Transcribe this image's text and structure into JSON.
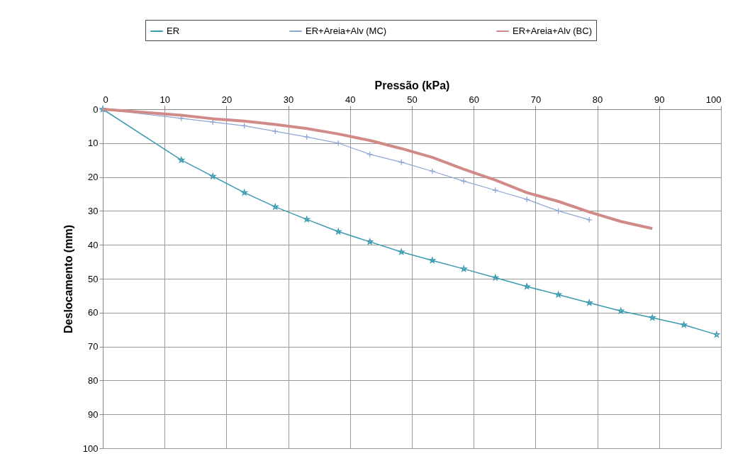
{
  "chart_data": {
    "type": "line",
    "xlabel": "Pressão (kPa)",
    "ylabel": "Deslocamento (mm)",
    "xlim": [
      0,
      100
    ],
    "xticks": [
      0,
      10,
      20,
      30,
      40,
      50,
      60,
      70,
      80,
      90,
      100
    ],
    "ylim": [
      100,
      0
    ],
    "yticks": [
      0,
      10,
      20,
      30,
      40,
      50,
      60,
      70,
      80,
      90,
      100
    ],
    "grid": true,
    "legend": "top",
    "series": [
      {
        "name": "ER",
        "color": "#3a9ab0",
        "marker": "star",
        "x": [
          0,
          12.7,
          17.8,
          22.9,
          27.9,
          33.0,
          38.1,
          43.2,
          48.3,
          53.3,
          58.4,
          63.5,
          68.6,
          73.7,
          78.7,
          83.8,
          88.9,
          94.0,
          99.3
        ],
        "values": [
          0,
          15,
          19.8,
          24.6,
          28.8,
          32.5,
          36.1,
          39.1,
          42.1,
          44.6,
          47.1,
          49.7,
          52.3,
          54.7,
          57.1,
          59.5,
          61.5,
          63.6,
          66.5
        ]
      },
      {
        "name": "ER+Areia+Alv (MC)",
        "color": "#8ea6d4",
        "marker": "cross",
        "x": [
          0,
          12.7,
          17.8,
          22.9,
          27.9,
          33.0,
          38.1,
          43.2,
          48.3,
          53.3,
          58.4,
          63.5,
          68.6,
          73.7,
          78.7
        ],
        "values": [
          0,
          2.7,
          3.8,
          4.9,
          6.5,
          8.2,
          10.0,
          13.3,
          15.6,
          18.3,
          21.2,
          23.9,
          26.6,
          30.0,
          32.6
        ]
      },
      {
        "name": "ER+Areia+Alv (BC)",
        "color": "#d08a88",
        "marker": "none",
        "x": [
          0,
          12.7,
          17.8,
          22.9,
          27.9,
          33.0,
          38.1,
          43.2,
          48.3,
          53.3,
          58.4,
          63.5,
          68.6,
          73.7,
          78.7,
          83.8,
          88.9
        ],
        "values": [
          0,
          1.8,
          2.8,
          3.5,
          4.5,
          5.7,
          7.3,
          9.2,
          11.6,
          14.2,
          17.7,
          20.9,
          24.6,
          27.2,
          30.3,
          33.1,
          35.2
        ]
      }
    ]
  }
}
